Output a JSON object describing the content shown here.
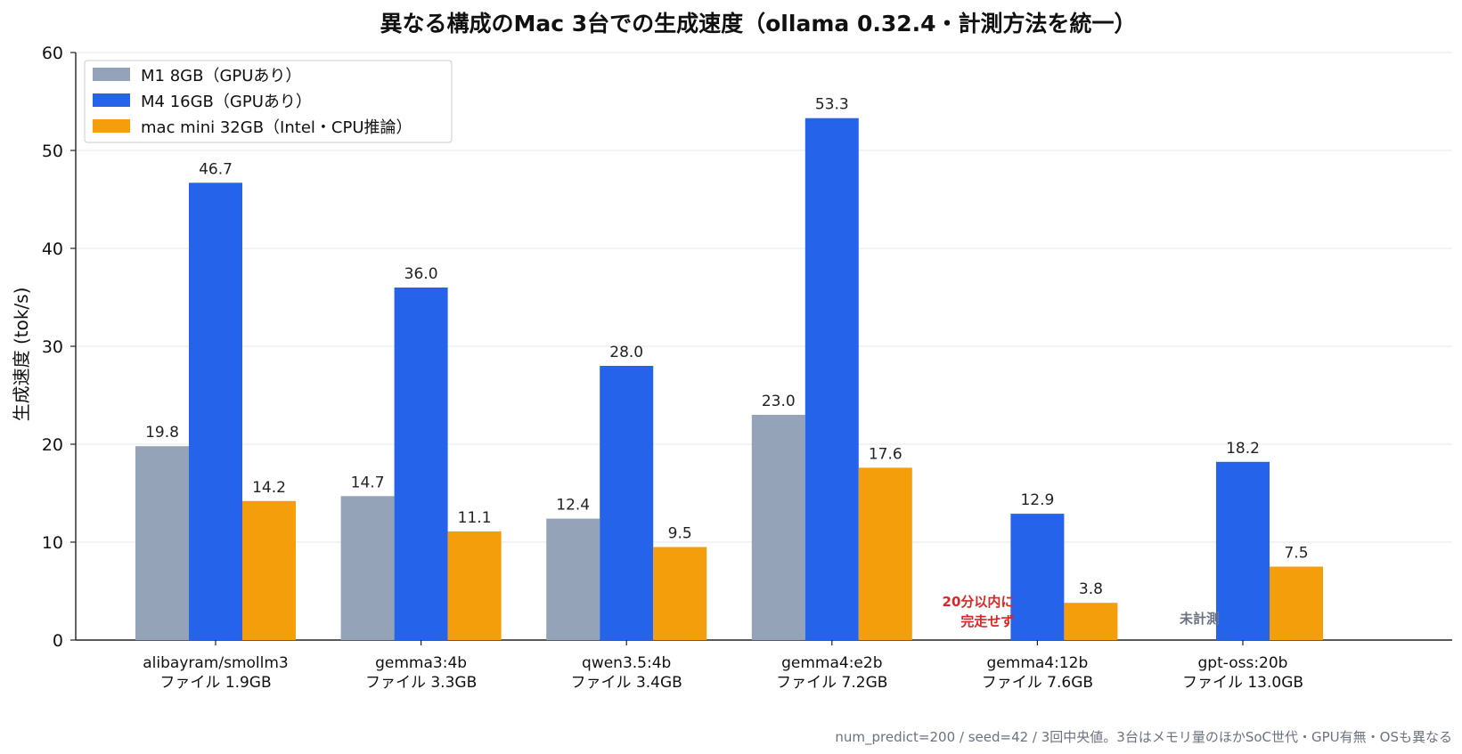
{
  "chart_data": {
    "type": "bar",
    "title": "異なる構成のMac 3台での生成速度（ollama 0.32.4・計測方法を統一）",
    "ylabel": "生成速度 (tok/s)",
    "xlabel": "",
    "ylim": [
      0,
      60
    ],
    "yticks": [
      0,
      10,
      20,
      30,
      40,
      50,
      60
    ],
    "grid": "horizontal",
    "legend_position": "top-left",
    "categories": [
      [
        "alibayram/smollm3",
        "ファイル 1.9GB"
      ],
      [
        "gemma3:4b",
        "ファイル 3.3GB"
      ],
      [
        "qwen3.5:4b",
        "ファイル 3.4GB"
      ],
      [
        "gemma4:e2b",
        "ファイル 7.2GB"
      ],
      [
        "gemma4:12b",
        "ファイル 7.6GB"
      ],
      [
        "gpt-oss:20b",
        "ファイル 13.0GB"
      ]
    ],
    "series": [
      {
        "name": "M1 8GB（GPUあり）",
        "color": "#94a3b8",
        "values": [
          19.8,
          14.7,
          12.4,
          23.0,
          null,
          null
        ]
      },
      {
        "name": "M4 16GB（GPUあり）",
        "color": "#2563eb",
        "values": [
          46.7,
          36.0,
          28.0,
          53.3,
          12.9,
          18.2
        ]
      },
      {
        "name": "mac mini 32GB（Intel・CPU推論）",
        "color": "#f59e0b",
        "values": [
          14.2,
          11.1,
          9.5,
          17.6,
          3.8,
          7.5
        ]
      }
    ],
    "annotations": [
      {
        "category_index": 4,
        "series_index": 0,
        "lines": [
          "20分以内に",
          "完走せず"
        ],
        "color": "#dc2626"
      },
      {
        "category_index": 5,
        "series_index": 0,
        "lines": [
          "未計測"
        ],
        "color": "#6b7280"
      }
    ],
    "footnote": "num_predict=200 / seed=42 / 3回中央値。3台はメモリ量のほかSoC世代・GPU有無・OSも異なる"
  }
}
